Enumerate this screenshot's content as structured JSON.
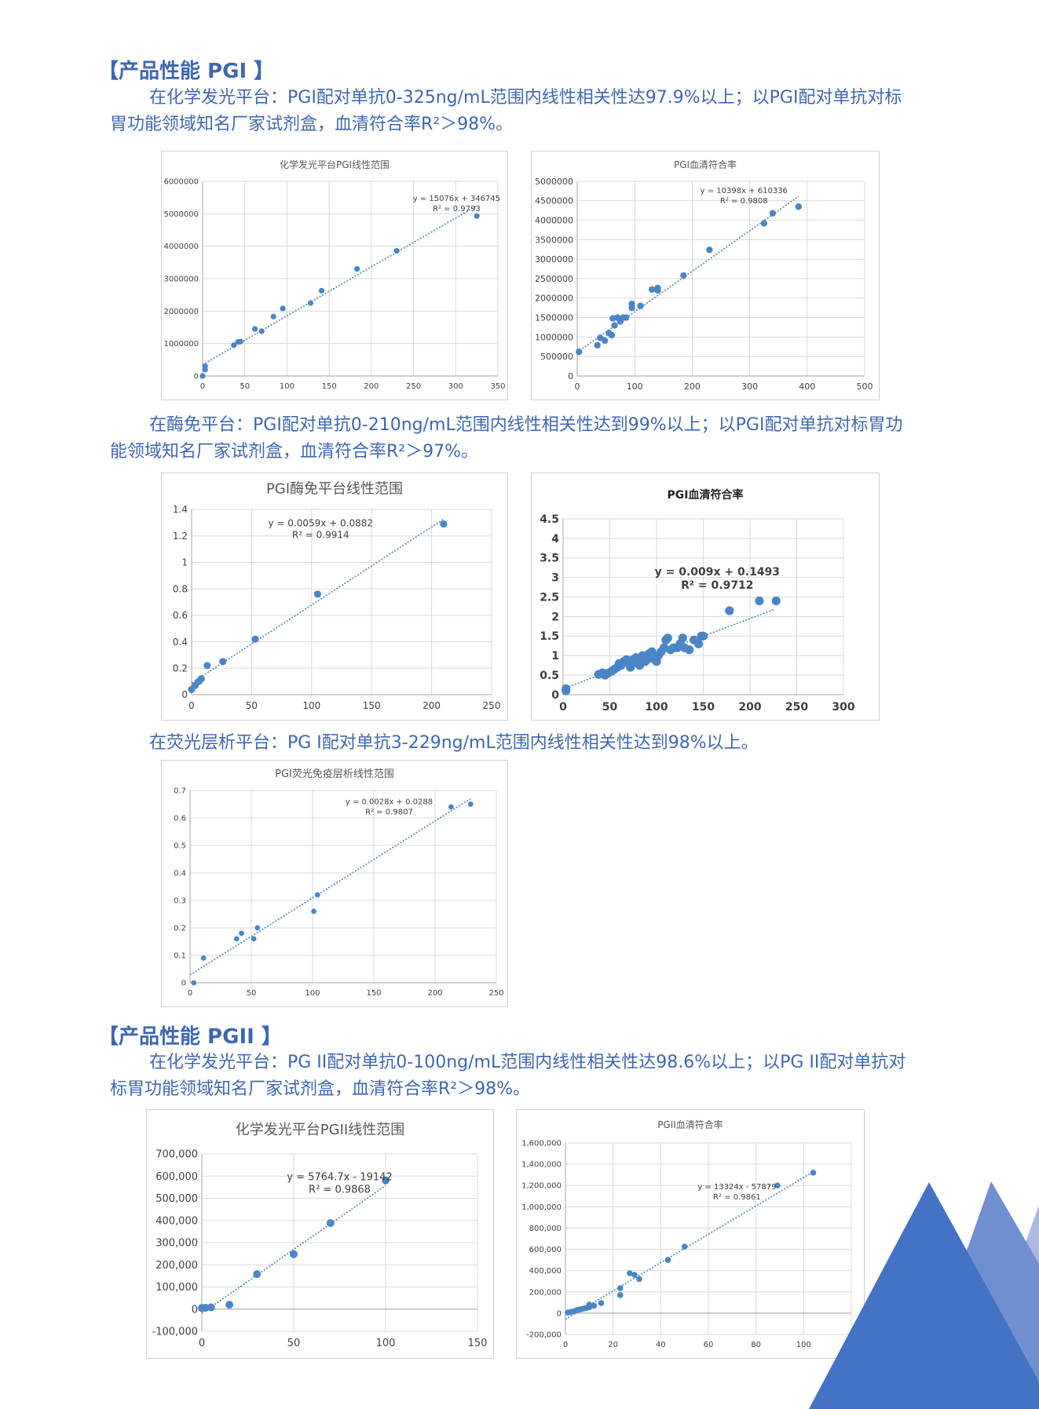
{
  "sections": {
    "pg1": {
      "heading": "【产品性能 PGI 】",
      "chem_line1": "在化学发光平台：PGI配对单抗0-325ng/mL范围内线性相关性达97.9%以上；以PGI配对单抗对标",
      "chem_line2": "胃功能领域知名厂家试剂盒，血清符合率R²＞98%。",
      "enzyme_line1": "在酶免平台：PGI配对单抗0-210ng/mL范围内线性相关性达到99%以上；以PGI配对单抗对标胃功",
      "enzyme_line2": "能领域知名厂家试剂盒，血清符合率R²＞97%。",
      "fluor_line": "在荧光层析平台：PG I配对单抗3-229ng/mL范围内线性相关性达到98%以上。"
    },
    "pg2": {
      "heading": "【产品性能 PGII 】",
      "chem_line1": "在化学发光平台：PG II配对单抗0-100ng/mL范围内线性相关性达98.6%以上；以PG II配对单抗对",
      "chem_line2": "标胃功能领域知名厂家试剂盒，血清符合率R²＞98%。"
    }
  },
  "theme": {
    "text_color": "#3f67b0",
    "point_color": "#4a86c5",
    "grid_color": "#d9d9d9",
    "deco_dark": "#4472c4",
    "deco_mid": "#6f8fd0",
    "deco_light": "#aab8e3"
  },
  "chart_data": [
    {
      "id": "c1",
      "type": "scatter",
      "title": "化学发光平台PGI线性范围",
      "equation": "y = 15076x + 346745",
      "r2": "R² = 0.9793",
      "xlim": [
        0,
        350
      ],
      "ylim": [
        0,
        6000000
      ],
      "xticks": [
        0,
        50,
        100,
        150,
        200,
        250,
        300,
        350
      ],
      "yticks": [
        0,
        1000000,
        2000000,
        3000000,
        4000000,
        5000000,
        6000000
      ],
      "tick_format": "plain",
      "trend": {
        "slope": 15076,
        "intercept": 346745,
        "x0": 0,
        "x1": 325
      },
      "points": [
        [
          0,
          0
        ],
        [
          3,
          200000
        ],
        [
          3,
          300000
        ],
        [
          37,
          950000
        ],
        [
          42,
          1050000
        ],
        [
          45,
          1060000
        ],
        [
          62,
          1450000
        ],
        [
          70,
          1380000
        ],
        [
          84,
          1830000
        ],
        [
          95,
          2080000
        ],
        [
          128,
          2250000
        ],
        [
          141,
          2630000
        ],
        [
          183,
          3300000
        ],
        [
          230,
          3860000
        ],
        [
          325,
          4930000
        ]
      ]
    },
    {
      "id": "c2",
      "type": "scatter",
      "title": "PGI血清符合率",
      "equation": "y = 10398x + 610336",
      "r2": "R² = 0.9808",
      "xlim": [
        0,
        500
      ],
      "ylim": [
        0,
        5000000
      ],
      "xticks": [
        0,
        100,
        200,
        300,
        400,
        500
      ],
      "yticks": [
        0,
        500000,
        1000000,
        1500000,
        2000000,
        2500000,
        3000000,
        3500000,
        4000000,
        4500000,
        5000000
      ],
      "tick_format": "plain",
      "trend": {
        "slope": 10398,
        "intercept": 610336,
        "x0": 0,
        "x1": 385
      },
      "points": [
        [
          3,
          620000
        ],
        [
          35,
          790000
        ],
        [
          40,
          980000
        ],
        [
          48,
          910000
        ],
        [
          55,
          1100000
        ],
        [
          60,
          1050000
        ],
        [
          62,
          1480000
        ],
        [
          65,
          1300000
        ],
        [
          70,
          1500000
        ],
        [
          75,
          1400000
        ],
        [
          80,
          1500000
        ],
        [
          85,
          1500000
        ],
        [
          95,
          1750000
        ],
        [
          95,
          1850000
        ],
        [
          110,
          1800000
        ],
        [
          130,
          2220000
        ],
        [
          140,
          2200000
        ],
        [
          140,
          2260000
        ],
        [
          185,
          2580000
        ],
        [
          230,
          3240000
        ],
        [
          325,
          3920000
        ],
        [
          340,
          4180000
        ],
        [
          385,
          4350000
        ]
      ]
    },
    {
      "id": "c3",
      "type": "scatter",
      "title": "PGI酶免平台线性范围",
      "equation": "y = 0.0059x + 0.0882",
      "r2": "R² = 0.9914",
      "xlim": [
        0,
        250
      ],
      "ylim": [
        0,
        1.4
      ],
      "xticks": [
        0,
        50,
        100,
        150,
        200,
        250
      ],
      "yticks": [
        0,
        0.2,
        0.4,
        0.6,
        0.8,
        1,
        1.2,
        1.4
      ],
      "tick_format": "plain",
      "trend": {
        "slope": 0.0059,
        "intercept": 0.0882,
        "x0": 0,
        "x1": 210
      },
      "points": [
        [
          0,
          0.04
        ],
        [
          3,
          0.07
        ],
        [
          6,
          0.1
        ],
        [
          8,
          0.12
        ],
        [
          13,
          0.22
        ],
        [
          26,
          0.25
        ],
        [
          53,
          0.42
        ],
        [
          105,
          0.76
        ],
        [
          210,
          1.29
        ]
      ]
    },
    {
      "id": "c4",
      "type": "scatter",
      "title": "PGI血清符合率",
      "equation": "y = 0.009x + 0.1493",
      "r2": "R² = 0.9712",
      "xlim": [
        0,
        300
      ],
      "ylim": [
        0,
        4.5
      ],
      "xticks": [
        0,
        50,
        100,
        150,
        200,
        250,
        300
      ],
      "yticks": [
        0,
        0.5,
        1,
        1.5,
        2,
        2.5,
        3,
        3.5,
        4,
        4.5
      ],
      "tick_format": "plain",
      "trend": {
        "slope": 0.009,
        "intercept": 0.1493,
        "x0": 0,
        "x1": 225
      },
      "points": [
        [
          3,
          0.1
        ],
        [
          3,
          0.15
        ],
        [
          38,
          0.52
        ],
        [
          42,
          0.56
        ],
        [
          45,
          0.5
        ],
        [
          48,
          0.55
        ],
        [
          52,
          0.6
        ],
        [
          55,
          0.65
        ],
        [
          58,
          0.7
        ],
        [
          60,
          0.8
        ],
        [
          62,
          0.75
        ],
        [
          65,
          0.85
        ],
        [
          68,
          0.9
        ],
        [
          70,
          0.8
        ],
        [
          72,
          0.7
        ],
        [
          75,
          0.9
        ],
        [
          78,
          0.95
        ],
        [
          80,
          0.8
        ],
        [
          82,
          0.75
        ],
        [
          85,
          1.0
        ],
        [
          88,
          0.85
        ],
        [
          90,
          0.9
        ],
        [
          92,
          1.05
        ],
        [
          95,
          1.1
        ],
        [
          98,
          0.9
        ],
        [
          100,
          0.85
        ],
        [
          102,
          1.0
        ],
        [
          105,
          1.1
        ],
        [
          108,
          1.2
        ],
        [
          110,
          1.4
        ],
        [
          112,
          1.45
        ],
        [
          115,
          1.15
        ],
        [
          118,
          1.2
        ],
        [
          122,
          1.2
        ],
        [
          125,
          1.3
        ],
        [
          128,
          1.45
        ],
        [
          130,
          1.2
        ],
        [
          135,
          1.15
        ],
        [
          140,
          1.4
        ],
        [
          145,
          1.3
        ],
        [
          148,
          1.5
        ],
        [
          150,
          1.5
        ],
        [
          178,
          2.15
        ],
        [
          210,
          2.4
        ],
        [
          228,
          2.4
        ]
      ]
    },
    {
      "id": "c5",
      "type": "scatter",
      "title": "PGI荧光免疫层析线性范围",
      "equation": "y = 0.0028x + 0.0288",
      "r2": "R² = 0.9807",
      "xlim": [
        0,
        250
      ],
      "ylim": [
        0,
        0.7
      ],
      "xticks": [
        0,
        50,
        100,
        150,
        200,
        250
      ],
      "yticks": [
        0,
        0.1,
        0.2,
        0.3,
        0.4,
        0.5,
        0.6,
        0.7
      ],
      "tick_format": "plain",
      "trend": {
        "slope": 0.0028,
        "intercept": 0.0288,
        "x0": 0,
        "x1": 229
      },
      "points": [
        [
          3,
          0.0
        ],
        [
          11,
          0.09
        ],
        [
          38,
          0.16
        ],
        [
          42,
          0.18
        ],
        [
          52,
          0.16
        ],
        [
          55,
          0.2
        ],
        [
          101,
          0.26
        ],
        [
          104,
          0.32
        ],
        [
          213,
          0.64
        ],
        [
          229,
          0.65
        ]
      ]
    },
    {
      "id": "c6",
      "type": "scatter",
      "title": "化学发光平台PGII线性范围",
      "equation": "y = 5764.7x - 19142",
      "r2": "R² = 0.9868",
      "xlim": [
        0,
        150
      ],
      "ylim": [
        -100000,
        700000
      ],
      "xticks": [
        0,
        50,
        100,
        150
      ],
      "yticks": [
        -100000,
        0,
        100000,
        200000,
        300000,
        400000,
        500000,
        600000,
        700000
      ],
      "tick_format": "comma",
      "trend": {
        "slope": 5764.7,
        "intercept": -19142,
        "x0": 0,
        "x1": 100
      },
      "points": [
        [
          0,
          5000
        ],
        [
          2,
          6000
        ],
        [
          5,
          8000
        ],
        [
          15,
          20000
        ],
        [
          30,
          158000
        ],
        [
          50,
          248000
        ],
        [
          70,
          388000
        ],
        [
          100,
          580000
        ]
      ]
    },
    {
      "id": "c7",
      "type": "scatter",
      "title": "PGII血清符合率",
      "equation": "y = 13324x - 57879",
      "r2": "R² = 0.9861",
      "xlim": [
        0,
        120
      ],
      "ylim": [
        -200000,
        1600000
      ],
      "xticks": [
        0,
        20,
        40,
        60,
        80,
        100,
        120
      ],
      "yticks": [
        -200000,
        0,
        200000,
        400000,
        600000,
        800000,
        1000000,
        1200000,
        1400000,
        1600000
      ],
      "tick_format": "comma",
      "trend": {
        "slope": 13324,
        "intercept": -57879,
        "x0": 0,
        "x1": 104
      },
      "points": [
        [
          1,
          5000
        ],
        [
          2,
          10000
        ],
        [
          3,
          15000
        ],
        [
          4,
          20000
        ],
        [
          5,
          30000
        ],
        [
          6,
          35000
        ],
        [
          7,
          40000
        ],
        [
          8,
          45000
        ],
        [
          9,
          50000
        ],
        [
          10,
          55000
        ],
        [
          10,
          80000
        ],
        [
          12,
          70000
        ],
        [
          15,
          95000
        ],
        [
          23,
          170000
        ],
        [
          23,
          235000
        ],
        [
          27,
          375000
        ],
        [
          29,
          360000
        ],
        [
          31,
          320000
        ],
        [
          43,
          500000
        ],
        [
          50,
          625000
        ],
        [
          89,
          1200000
        ],
        [
          104,
          1320000
        ]
      ]
    }
  ]
}
